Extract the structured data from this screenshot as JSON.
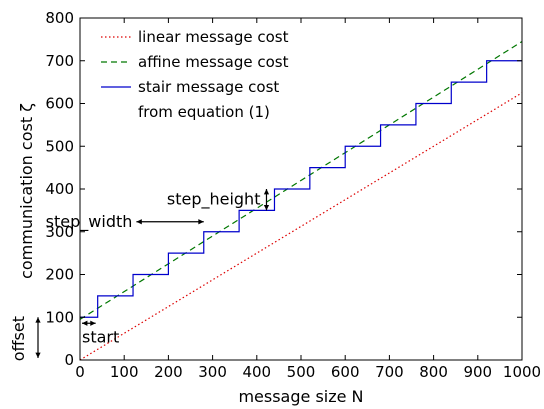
{
  "chart_data": {
    "type": "line",
    "xlabel": "message size N",
    "ylabel": "communication cost ζ",
    "xlim": [
      0,
      1000
    ],
    "ylim": [
      0,
      800
    ],
    "xticks": [
      0,
      100,
      200,
      300,
      400,
      500,
      600,
      700,
      800,
      900,
      1000
    ],
    "yticks": [
      0,
      100,
      200,
      300,
      400,
      500,
      600,
      700,
      800
    ],
    "grid": false,
    "legend_position": "top-left",
    "series": [
      {
        "name": "linear message cost",
        "style": "dotted",
        "color": "#dd0000",
        "x": [
          0,
          1000
        ],
        "y": [
          0,
          625
        ]
      },
      {
        "name": "affine message cost",
        "style": "dashed",
        "color": "#007700",
        "x": [
          0,
          1000
        ],
        "y": [
          95,
          745
        ]
      },
      {
        "name": "stair message cost",
        "name_line2": "from equation (1)",
        "style": "solid-step",
        "color": "#0000cc",
        "start": 40,
        "step_width": 80,
        "step_height": 50,
        "first_value": 100,
        "last_value": 750
      }
    ],
    "annotations": {
      "step_height": "step_height",
      "step_width": "step_width",
      "start": "start",
      "offset": "offset"
    }
  }
}
